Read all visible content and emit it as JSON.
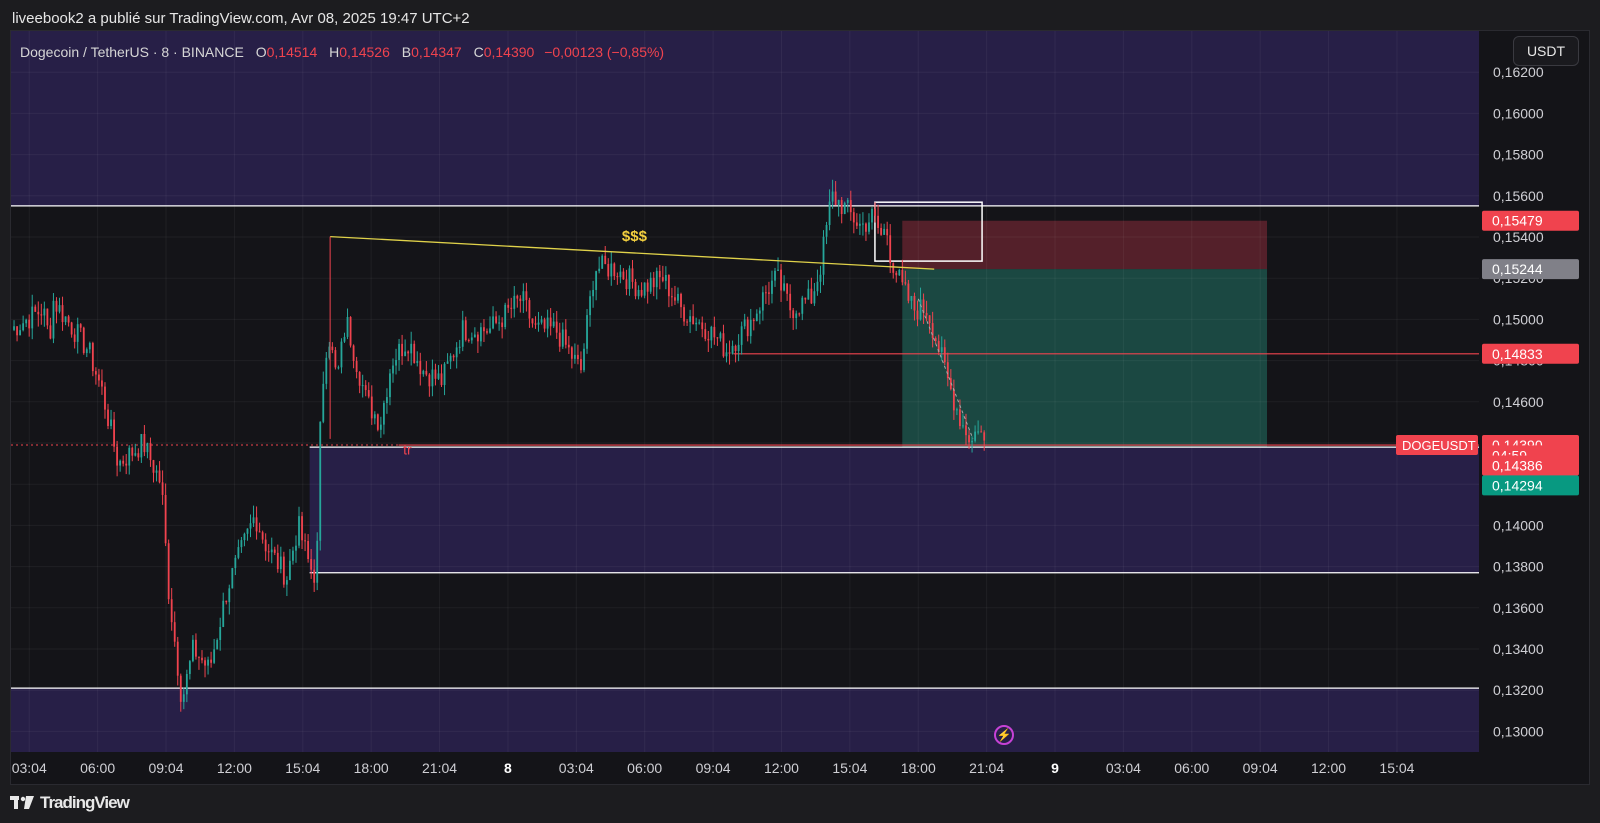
{
  "header": {
    "publisher_line": "liveebook2 a publié sur TradingView.com, Avr 08, 2025 19:47 UTC+2"
  },
  "legend": {
    "symbol": "Dogecoin / TetherUS · 8 · BINANCE",
    "o_label": "O",
    "o_value": "0,14514",
    "h_label": "H",
    "h_value": "0,14526",
    "b_label": "B",
    "b_value": "0,14347",
    "c_label": "C",
    "c_value": "0,14390",
    "change": "−0,00123 (−0,85%)"
  },
  "currency_button": "USDT",
  "annotations": {
    "dollar_text": "$$$",
    "tr_text": "tr"
  },
  "footer": {
    "brand": "TradingView"
  },
  "icons": {
    "bolt": "lightning-icon",
    "logo": "tradingview-logo-icon"
  },
  "colors": {
    "up": "#26a69a",
    "down": "#f0434e",
    "zone": "#2a2150",
    "trend": "#e0d24a",
    "stop_zone": "#6a2430",
    "target_zone": "#1d5a50"
  },
  "chart_data": {
    "type": "candlestick",
    "symbol": "DOGEUSDT",
    "ylim": [
      0.129,
      0.164
    ],
    "y_ticks": [
      "0,16200",
      "0,16000",
      "0,15800",
      "0,15600",
      "0,15400",
      "0,15200",
      "0,15000",
      "0,14800",
      "0,14600",
      "0,14400",
      "0,14200",
      "0,14000",
      "0,13800",
      "0,13600",
      "0,13400",
      "0,13200",
      "0,13000"
    ],
    "y_tick_values": [
      0.162,
      0.16,
      0.158,
      0.156,
      0.154,
      0.152,
      0.15,
      0.148,
      0.146,
      0.144,
      0.142,
      0.14,
      0.138,
      0.136,
      0.134,
      0.132,
      0.13
    ],
    "x_ticks": [
      "03:04",
      "06:00",
      "09:04",
      "12:00",
      "15:04",
      "18:00",
      "21:04",
      "8",
      "03:04",
      "06:00",
      "09:04",
      "12:00",
      "15:04",
      "18:00",
      "21:04",
      "9",
      "03:04",
      "06:00",
      "09:04",
      "12:00",
      "15:04"
    ],
    "x_tick_hours": [
      3,
      6,
      9,
      12,
      15,
      18,
      21,
      24,
      27,
      30,
      33,
      36,
      39,
      42,
      45,
      48,
      51,
      54,
      57,
      60,
      63
    ],
    "x_range_hours": [
      2.2,
      66.6
    ],
    "price_badges": [
      {
        "text": "0,15479",
        "value": 0.15479,
        "color": "#f0434e"
      },
      {
        "text": "0,15244",
        "value": 0.15244,
        "color": "#808088"
      },
      {
        "text": "0,14833",
        "value": 0.14833,
        "color": "#f0434e"
      },
      {
        "text": "0,14390",
        "value": 0.1439,
        "color": "#f0434e"
      },
      {
        "text": "04:59",
        "value": 0.1434,
        "color": "#f0434e"
      },
      {
        "text": "0,14386",
        "value": 0.14291,
        "color": "#f0434e"
      },
      {
        "text": "0,14294",
        "value": 0.14194,
        "color": "#089981"
      }
    ],
    "symbol_badge": {
      "text": "DOGEUSDT",
      "value": 0.1439
    },
    "path_points": [
      [
        2.2,
        0.1495
      ],
      [
        3.6,
        0.1505
      ],
      [
        3.9,
        0.149
      ],
      [
        4.0,
        0.151
      ],
      [
        5.6,
        0.1485
      ],
      [
        6.2,
        0.1465
      ],
      [
        6.9,
        0.143
      ],
      [
        8.0,
        0.144
      ],
      [
        8.8,
        0.142
      ],
      [
        9.1,
        0.137
      ],
      [
        9.7,
        0.1315
      ],
      [
        10.2,
        0.134
      ],
      [
        10.9,
        0.133
      ],
      [
        11.7,
        0.137
      ],
      [
        12.9,
        0.1405
      ],
      [
        13.4,
        0.139
      ],
      [
        14.3,
        0.1375
      ],
      [
        14.8,
        0.14
      ],
      [
        15.3,
        0.138
      ],
      [
        15.6,
        0.1375
      ],
      [
        15.8,
        0.146
      ],
      [
        16.1,
        0.1495
      ],
      [
        16.5,
        0.147
      ],
      [
        16.9,
        0.15
      ],
      [
        17.8,
        0.146
      ],
      [
        18.4,
        0.145
      ],
      [
        18.9,
        0.148
      ],
      [
        19.6,
        0.149
      ],
      [
        20.3,
        0.1475
      ],
      [
        21.1,
        0.147
      ],
      [
        22.0,
        0.1495
      ],
      [
        23.2,
        0.1495
      ],
      [
        24.6,
        0.151
      ],
      [
        25.2,
        0.1495
      ],
      [
        26.1,
        0.1495
      ],
      [
        27.2,
        0.1475
      ],
      [
        27.8,
        0.1525
      ],
      [
        28.7,
        0.1525
      ],
      [
        29.8,
        0.1515
      ],
      [
        30.8,
        0.152
      ],
      [
        31.6,
        0.1505
      ],
      [
        32.8,
        0.1495
      ],
      [
        33.6,
        0.1485
      ],
      [
        34.7,
        0.15
      ],
      [
        35.4,
        0.1515
      ],
      [
        35.8,
        0.152
      ],
      [
        36.4,
        0.1505
      ],
      [
        37.3,
        0.151
      ],
      [
        37.7,
        0.1525
      ],
      [
        38.2,
        0.156
      ],
      [
        38.7,
        0.1555
      ],
      [
        39.5,
        0.1545
      ],
      [
        40.0,
        0.155
      ],
      [
        40.4,
        0.154
      ],
      [
        40.6,
        0.1545
      ],
      [
        40.8,
        0.153
      ],
      [
        41.3,
        0.1515
      ],
      [
        41.8,
        0.1505
      ],
      [
        42.4,
        0.1505
      ],
      [
        42.8,
        0.149
      ],
      [
        43.3,
        0.147
      ],
      [
        43.9,
        0.145
      ],
      [
        44.4,
        0.144
      ],
      [
        44.6,
        0.145
      ],
      [
        44.9,
        0.1439
      ]
    ],
    "horizontal_levels": [
      {
        "value": 0.15551,
        "color": "#ffffff",
        "x_start": 2.2,
        "x_end": 66.6
      },
      {
        "value": 0.1438,
        "color": "#ffffff",
        "x_start": 15.3,
        "x_end": 66.6
      },
      {
        "value": 0.1377,
        "color": "#ffffff",
        "x_start": 15.3,
        "x_end": 66.6
      },
      {
        "value": 0.1321,
        "color": "#ffffff",
        "x_start": 2.2,
        "x_end": 66.6
      },
      {
        "value": 0.14833,
        "color": "#f0434e",
        "x_start": 33.9,
        "x_end": 66.6
      },
      {
        "value": 0.1439,
        "color": "#f0434e",
        "x_start": 19.2,
        "x_end": 66.6,
        "dashed_to_left": true
      }
    ],
    "trendline": {
      "from": [
        16.2,
        0.15402
      ],
      "to": [
        42.7,
        0.15244
      ],
      "color": "#e0d24a"
    },
    "zones": [
      {
        "name": "upper-supply-zone",
        "x1": 2.2,
        "x2": 66.6,
        "y1": 0.164,
        "y2": 0.15551,
        "color": "#2a2150"
      },
      {
        "name": "lower-demand-zone",
        "x1": 15.3,
        "x2": 66.6,
        "y1": 0.1438,
        "y2": 0.1377,
        "color": "#2a2150"
      },
      {
        "name": "bottom-zone",
        "x1": 2.2,
        "x2": 66.6,
        "y1": 0.1321,
        "y2": 0.129,
        "color": "#2a2150"
      },
      {
        "name": "stop-zone",
        "x1": 41.3,
        "x2": 57.3,
        "y1": 0.15479,
        "y2": 0.15244,
        "color": "#6a2430"
      },
      {
        "name": "target-zone",
        "x1": 41.3,
        "x2": 57.3,
        "y1": 0.15244,
        "y2": 0.1438,
        "color": "#1d5a50"
      },
      {
        "name": "entry-box",
        "x1": 40.1,
        "x2": 44.8,
        "y1": 0.15569,
        "y2": 0.15283,
        "color": "none"
      }
    ]
  }
}
